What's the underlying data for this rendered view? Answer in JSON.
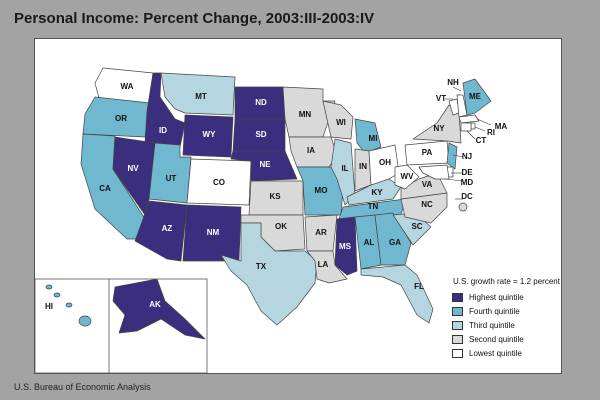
{
  "title": "Personal Income: Percent Change, 2003:III-2003:IV",
  "source": "U.S. Bureau of Economic Analysis",
  "growth_note": "U.S. growth rate = 1.2 percent",
  "colors": {
    "q5": "#3b2e7e",
    "q4": "#6fb8cf",
    "q3": "#b5d6e0",
    "q2": "#d9d9d9",
    "q1": "#ffffff"
  },
  "legend": [
    {
      "key": "q5",
      "label": "Highest quintile"
    },
    {
      "key": "q4",
      "label": "Fourth quintile"
    },
    {
      "key": "q3",
      "label": "Third quintile"
    },
    {
      "key": "q2",
      "label": "Second quintile"
    },
    {
      "key": "q1",
      "label": "Lowest quintile"
    }
  ],
  "states": [
    {
      "abbr": "WA",
      "q": "q1"
    },
    {
      "abbr": "OR",
      "q": "q4"
    },
    {
      "abbr": "CA",
      "q": "q4"
    },
    {
      "abbr": "ID",
      "q": "q5"
    },
    {
      "abbr": "NV",
      "q": "q5"
    },
    {
      "abbr": "MT",
      "q": "q3"
    },
    {
      "abbr": "WY",
      "q": "q5"
    },
    {
      "abbr": "UT",
      "q": "q4"
    },
    {
      "abbr": "AZ",
      "q": "q5"
    },
    {
      "abbr": "CO",
      "q": "q1"
    },
    {
      "abbr": "NM",
      "q": "q5"
    },
    {
      "abbr": "ND",
      "q": "q5"
    },
    {
      "abbr": "SD",
      "q": "q5"
    },
    {
      "abbr": "NE",
      "q": "q5"
    },
    {
      "abbr": "KS",
      "q": "q2"
    },
    {
      "abbr": "OK",
      "q": "q2"
    },
    {
      "abbr": "TX",
      "q": "q3"
    },
    {
      "abbr": "MN",
      "q": "q2"
    },
    {
      "abbr": "IA",
      "q": "q2"
    },
    {
      "abbr": "MO",
      "q": "q4"
    },
    {
      "abbr": "AR",
      "q": "q2"
    },
    {
      "abbr": "LA",
      "q": "q2"
    },
    {
      "abbr": "WI",
      "q": "q2"
    },
    {
      "abbr": "IL",
      "q": "q3"
    },
    {
      "abbr": "MI",
      "q": "q4"
    },
    {
      "abbr": "IN",
      "q": "q2"
    },
    {
      "abbr": "OH",
      "q": "q1"
    },
    {
      "abbr": "KY",
      "q": "q3"
    },
    {
      "abbr": "TN",
      "q": "q4"
    },
    {
      "abbr": "MS",
      "q": "q5"
    },
    {
      "abbr": "AL",
      "q": "q4"
    },
    {
      "abbr": "GA",
      "q": "q4"
    },
    {
      "abbr": "FL",
      "q": "q3"
    },
    {
      "abbr": "SC",
      "q": "q3"
    },
    {
      "abbr": "NC",
      "q": "q2"
    },
    {
      "abbr": "VA",
      "q": "q2"
    },
    {
      "abbr": "WV",
      "q": "q1"
    },
    {
      "abbr": "PA",
      "q": "q1"
    },
    {
      "abbr": "NY",
      "q": "q2"
    },
    {
      "abbr": "VT",
      "q": "q1"
    },
    {
      "abbr": "NH",
      "q": "q1"
    },
    {
      "abbr": "ME",
      "q": "q4"
    },
    {
      "abbr": "MA",
      "q": "q1"
    },
    {
      "abbr": "RI",
      "q": "q1"
    },
    {
      "abbr": "CT",
      "q": "q1"
    },
    {
      "abbr": "NJ",
      "q": "q4"
    },
    {
      "abbr": "DE",
      "q": "q1"
    },
    {
      "abbr": "MD",
      "q": "q1"
    },
    {
      "abbr": "DC",
      "q": "q2"
    },
    {
      "abbr": "AK",
      "q": "q5"
    },
    {
      "abbr": "HI",
      "q": "q4"
    }
  ]
}
